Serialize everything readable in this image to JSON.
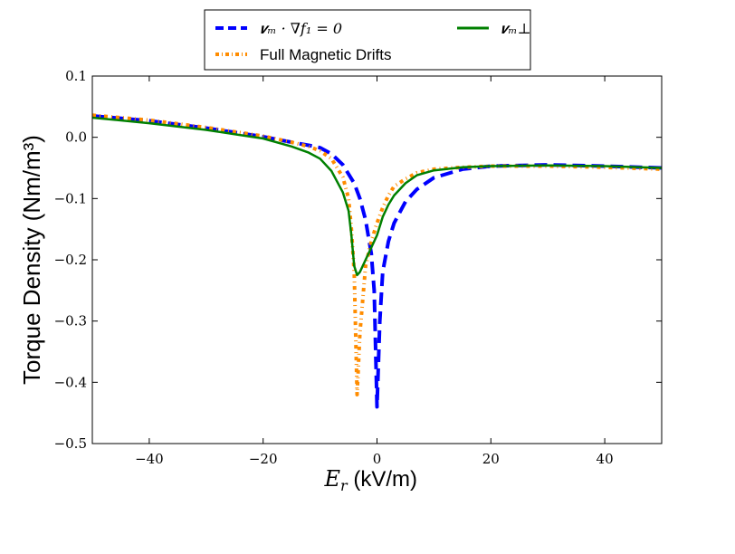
{
  "chart_data": {
    "type": "line",
    "title": "",
    "xlabel": "E_r (kV/m)",
    "xlabel_var": "E",
    "xlabel_sub": "r",
    "xlabel_unit": " (kV/m)",
    "ylabel": "Torque Density (Nm/m³)",
    "xlim": [
      -50,
      50
    ],
    "ylim": [
      -0.5,
      0.1
    ],
    "x_ticks": [
      -40,
      -20,
      0,
      20,
      40
    ],
    "x_tick_labels": [
      "−40",
      "−20",
      "0",
      "20",
      "40"
    ],
    "y_ticks": [
      0.1,
      0.0,
      -0.1,
      -0.2,
      -0.3,
      -0.4,
      -0.5
    ],
    "y_tick_labels": [
      "0.1",
      "0.0",
      "−0.1",
      "−0.2",
      "−0.3",
      "−0.4",
      "−0.5"
    ],
    "grid": false,
    "legend_placement": "top-center, above plot",
    "series": [
      {
        "name": "v_m · ∇f₁ = 0",
        "legend_label": "𝒗ₘ · ∇f₁ = 0",
        "color": "#0000ff",
        "style": "dashed",
        "x": [
          -50,
          -40,
          -30,
          -20,
          -15,
          -12,
          -10,
          -8,
          -6,
          -4,
          -3,
          -2,
          -1,
          -0.5,
          0,
          0.5,
          1,
          2,
          3,
          5,
          7,
          10,
          15,
          20,
          30,
          40,
          50
        ],
        "y": [
          0.035,
          0.027,
          0.015,
          0.001,
          -0.008,
          -0.013,
          -0.017,
          -0.027,
          -0.045,
          -0.075,
          -0.1,
          -0.135,
          -0.19,
          -0.25,
          -0.44,
          -0.3,
          -0.22,
          -0.17,
          -0.14,
          -0.105,
          -0.085,
          -0.066,
          -0.052,
          -0.047,
          -0.045,
          -0.047,
          -0.05
        ]
      },
      {
        "name": "Full Magnetic Drifts",
        "legend_label": "Full Magnetic Drifts",
        "color": "#ff8c00",
        "style": "dashdot",
        "x": [
          -50,
          -40,
          -30,
          -20,
          -15,
          -12,
          -10,
          -8,
          -6,
          -5,
          -4.5,
          -4,
          -3.5,
          -3,
          -2,
          -1,
          0,
          1,
          2,
          3,
          5,
          7,
          10,
          15,
          20,
          30,
          40,
          50
        ],
        "y": [
          0.036,
          0.028,
          0.016,
          0.002,
          -0.008,
          -0.015,
          -0.022,
          -0.035,
          -0.065,
          -0.1,
          -0.15,
          -0.22,
          -0.42,
          -0.32,
          -0.21,
          -0.17,
          -0.14,
          -0.115,
          -0.095,
          -0.08,
          -0.068,
          -0.058,
          -0.052,
          -0.049,
          -0.047,
          -0.047,
          -0.049,
          -0.052
        ]
      },
      {
        "name": "v_m^⊥",
        "legend_label": "𝒗ₘ⊥",
        "color": "#008000",
        "style": "solid",
        "x": [
          -50,
          -40,
          -30,
          -20,
          -15,
          -12,
          -10,
          -8,
          -6,
          -5,
          -4.5,
          -4,
          -3.5,
          -3,
          -2,
          -1,
          0,
          1,
          2,
          3,
          5,
          7,
          10,
          15,
          20,
          30,
          40,
          50
        ],
        "y": [
          0.032,
          0.023,
          0.012,
          -0.002,
          -0.015,
          -0.025,
          -0.035,
          -0.055,
          -0.09,
          -0.12,
          -0.16,
          -0.21,
          -0.225,
          -0.22,
          -0.2,
          -0.18,
          -0.16,
          -0.13,
          -0.11,
          -0.095,
          -0.075,
          -0.062,
          -0.054,
          -0.049,
          -0.047,
          -0.046,
          -0.047,
          -0.05
        ]
      }
    ]
  }
}
